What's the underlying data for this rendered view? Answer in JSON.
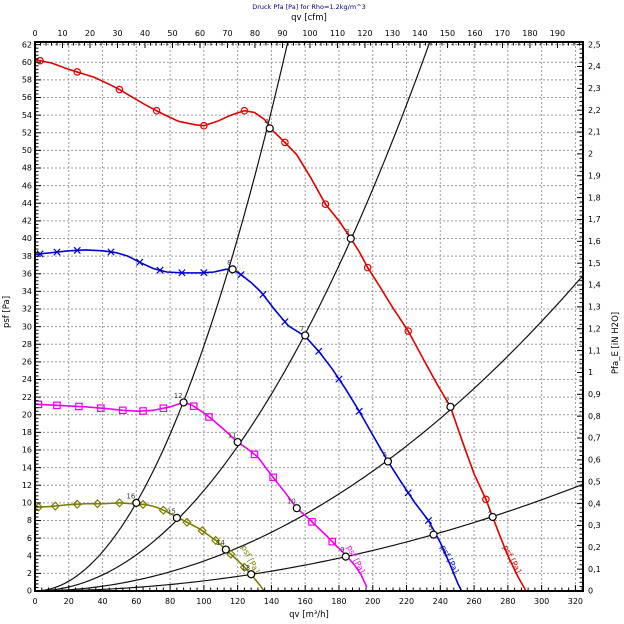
{
  "chart_data": {
    "type": "line",
    "title": "Druck Pfa [Pa] for Rho=1.2kg/m^3",
    "title_color": "#000080",
    "axes": {
      "top": {
        "label": "qv [cfm]",
        "min": 0,
        "max": 199.3,
        "tick_max": 190,
        "tick_step": 10,
        "minor_per_major": 5
      },
      "bottom": {
        "label": "qv [m³/h]",
        "min": 0,
        "max": 324.5,
        "tick_max": 320,
        "tick_step": 20,
        "minor_per_major": 5
      },
      "left": {
        "label": "psf [Pa]",
        "min": 0,
        "max": 62.3,
        "tick_max": 62,
        "tick_step": 2,
        "minor_per_major": 5
      },
      "right": {
        "label": "Pfa_E [iN H2O]",
        "min": 0,
        "max": 2.512,
        "tick_max": 2.5,
        "tick_step": 0.1,
        "minor_per_major": 5,
        "decimal_comma": true
      }
    },
    "grid": {
      "on": true,
      "style": "dashed",
      "color": "#9c9c9c"
    },
    "fan_curves": [
      {
        "id": "red",
        "color": "#e10000",
        "marker": "circle-dot",
        "end_label": "psf [Pa]",
        "end_label_qv": 277,
        "end_label_psf": 5.0,
        "points": [
          [
            0,
            60.3
          ],
          [
            10,
            59.9
          ],
          [
            20,
            59.2
          ],
          [
            25,
            58.9
          ],
          [
            35,
            58.3
          ],
          [
            45,
            57.4
          ],
          [
            50,
            56.9
          ],
          [
            58,
            56.0
          ],
          [
            66,
            55.1
          ],
          [
            75,
            54.2
          ],
          [
            85,
            53.3
          ],
          [
            95,
            52.9
          ],
          [
            100,
            52.8
          ],
          [
            108,
            53.3
          ],
          [
            116,
            54.0
          ],
          [
            124,
            54.5
          ],
          [
            130,
            54.3
          ],
          [
            136,
            53.5
          ],
          [
            141,
            52.2
          ],
          [
            148,
            50.9
          ],
          [
            155,
            49.5
          ],
          [
            163,
            47.0
          ],
          [
            172,
            43.9
          ],
          [
            180,
            42.0
          ],
          [
            186,
            40.3
          ],
          [
            192,
            38.5
          ],
          [
            197,
            36.7
          ],
          [
            204,
            34.6
          ],
          [
            212,
            32.1
          ],
          [
            221,
            29.5
          ],
          [
            230,
            26.3
          ],
          [
            238,
            23.5
          ],
          [
            246,
            20.9
          ],
          [
            253,
            17.0
          ],
          [
            260,
            13.3
          ],
          [
            267,
            10.4
          ],
          [
            274,
            6.9
          ],
          [
            280,
            4.0
          ],
          [
            286,
            1.6
          ],
          [
            290.5,
            0.1
          ]
        ],
        "marker_qv": [
          3,
          25,
          50,
          72,
          100,
          124,
          148,
          172,
          197,
          221,
          267
        ]
      },
      {
        "id": "blue",
        "color": "#0000cc",
        "marker": "x",
        "end_label": "psf [Pa]",
        "end_label_qv": 240,
        "end_label_psf": 5.0,
        "points": [
          [
            0,
            38.2
          ],
          [
            10,
            38.4
          ],
          [
            20,
            38.6
          ],
          [
            30,
            38.7
          ],
          [
            40,
            38.6
          ],
          [
            48,
            38.4
          ],
          [
            55,
            38.0
          ],
          [
            62,
            37.3
          ],
          [
            70,
            36.6
          ],
          [
            78,
            36.2
          ],
          [
            88,
            36.1
          ],
          [
            98,
            36.1
          ],
          [
            106,
            36.2
          ],
          [
            113,
            36.5
          ],
          [
            117,
            36.5
          ],
          [
            122,
            35.9
          ],
          [
            128,
            35.0
          ],
          [
            134,
            33.9
          ],
          [
            142,
            31.9
          ],
          [
            150,
            30.1
          ],
          [
            160,
            28.9
          ],
          [
            168,
            27.2
          ],
          [
            176,
            25.2
          ],
          [
            184,
            22.9
          ],
          [
            192,
            20.4
          ],
          [
            200,
            17.7
          ],
          [
            209,
            14.7
          ],
          [
            217,
            12.3
          ],
          [
            225,
            10.0
          ],
          [
            233,
            8.0
          ],
          [
            240,
            5.5
          ],
          [
            246,
            2.9
          ],
          [
            250.5,
            0.8
          ],
          [
            252.5,
            0.05
          ]
        ],
        "marker_qv": [
          3,
          13,
          25,
          45,
          62,
          74,
          87,
          100,
          122,
          135,
          148,
          168,
          180,
          192,
          221,
          233
        ]
      },
      {
        "id": "magenta",
        "color": "#ee00ee",
        "marker": "square",
        "end_label": "psf [Pa]",
        "end_label_qv": 184.5,
        "end_label_psf": 5.0,
        "points": [
          [
            0,
            21.2
          ],
          [
            10,
            21.1
          ],
          [
            20,
            21.0
          ],
          [
            30,
            20.9
          ],
          [
            42,
            20.7
          ],
          [
            52,
            20.5
          ],
          [
            62,
            20.4
          ],
          [
            70,
            20.5
          ],
          [
            80,
            20.9
          ],
          [
            88,
            21.4
          ],
          [
            93,
            21.1
          ],
          [
            100,
            20.2
          ],
          [
            106,
            19.3
          ],
          [
            112,
            18.3
          ],
          [
            120,
            16.9
          ],
          [
            126,
            16.1
          ],
          [
            132,
            15.2
          ],
          [
            137,
            13.9
          ],
          [
            143,
            12.4
          ],
          [
            148,
            11.2
          ],
          [
            155,
            9.4
          ],
          [
            161,
            8.4
          ],
          [
            167,
            7.3
          ],
          [
            173,
            6.2
          ],
          [
            179,
            5.0
          ],
          [
            184,
            4.1
          ],
          [
            189,
            3.0
          ],
          [
            193,
            1.9
          ],
          [
            196.5,
            0.4
          ]
        ],
        "marker_qv": [
          2,
          13,
          26,
          39,
          52,
          64,
          76,
          94,
          103,
          130,
          141,
          164,
          176
        ]
      },
      {
        "id": "olive",
        "color": "#7d7d00",
        "marker": "diamond",
        "end_label": "psf [Pa]",
        "end_label_qv": 122,
        "end_label_psf": 5.0,
        "points": [
          [
            0,
            9.5
          ],
          [
            10,
            9.6
          ],
          [
            20,
            9.8
          ],
          [
            30,
            9.9
          ],
          [
            40,
            9.9
          ],
          [
            50,
            10.0
          ],
          [
            58,
            9.9
          ],
          [
            66,
            9.8
          ],
          [
            72,
            9.5
          ],
          [
            78,
            9.0
          ],
          [
            84,
            8.4
          ],
          [
            90,
            7.8
          ],
          [
            97,
            7.1
          ],
          [
            103,
            6.3
          ],
          [
            108,
            5.6
          ],
          [
            113,
            4.7
          ],
          [
            117,
            4.0
          ],
          [
            121,
            3.3
          ],
          [
            126,
            2.3
          ],
          [
            130,
            1.4
          ],
          [
            133,
            0.7
          ],
          [
            135.5,
            0.05
          ]
        ],
        "marker_qv": [
          2,
          12,
          25,
          37,
          50,
          64,
          76,
          90,
          99,
          107,
          116,
          124
        ]
      }
    ],
    "system_curves": [
      {
        "k": 0.00278
      },
      {
        "k": 0.00114
      },
      {
        "k": 0.00034
      },
      {
        "k": 0.000115
      }
    ],
    "operating_points": [
      {
        "label": "4",
        "qv": 139,
        "psf": 52.5
      },
      {
        "label": "3",
        "qv": 187,
        "psf": 40.0
      },
      {
        "label": "2",
        "qv": 246,
        "psf": 20.9
      },
      {
        "label": "1",
        "qv": 271,
        "psf": 8.4
      },
      {
        "label": "8",
        "qv": 117,
        "psf": 36.5
      },
      {
        "label": "7",
        "qv": 160,
        "psf": 29.0
      },
      {
        "label": "6",
        "qv": 209,
        "psf": 14.7
      },
      {
        "label": "5",
        "qv": 236,
        "psf": 6.4
      },
      {
        "label": "12",
        "qv": 88,
        "psf": 21.4
      },
      {
        "label": "11",
        "qv": 120,
        "psf": 16.9
      },
      {
        "label": "10",
        "qv": 155,
        "psf": 9.4
      },
      {
        "label": "9",
        "qv": 184,
        "psf": 3.9
      },
      {
        "label": "16",
        "qv": 60,
        "psf": 10.0
      },
      {
        "label": "15",
        "qv": 84,
        "psf": 8.3
      },
      {
        "label": "14",
        "qv": 113,
        "psf": 4.7
      },
      {
        "label": "13",
        "qv": 128,
        "psf": 1.9
      }
    ]
  }
}
